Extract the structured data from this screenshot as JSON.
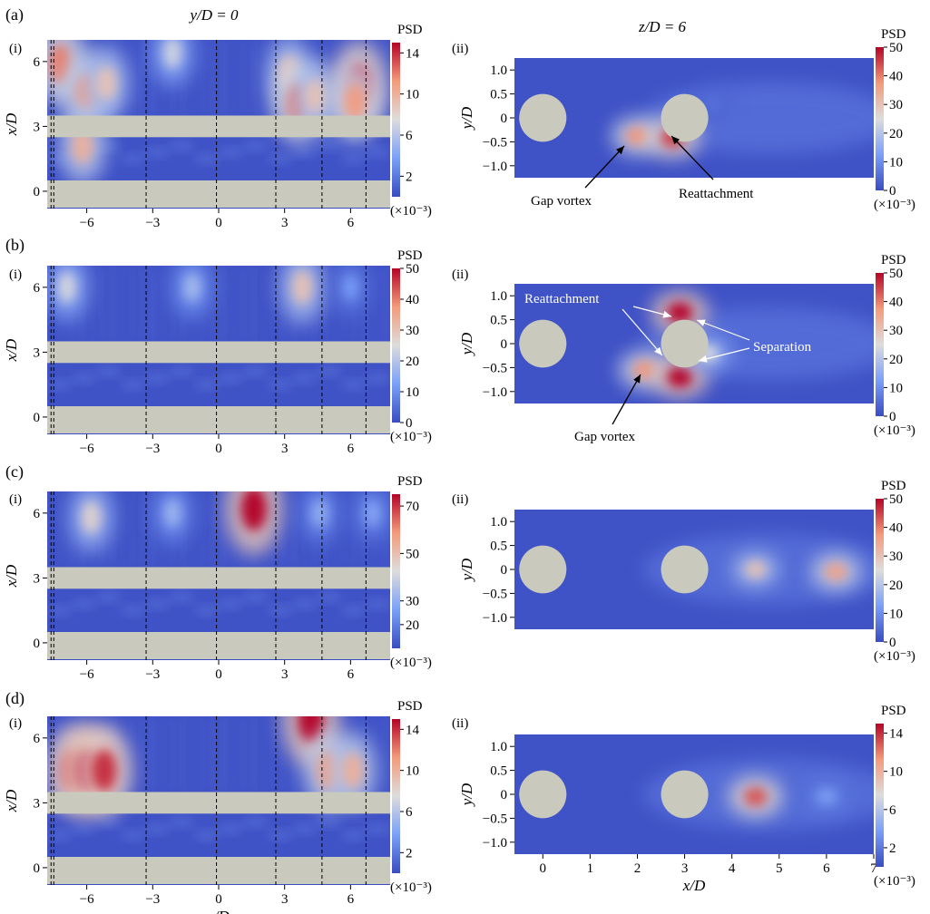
{
  "chart_data": [
    {
      "panel": "a",
      "sub": "i",
      "type": "heatmap",
      "title": "y/D = 0",
      "xlabel": "",
      "ylabel": "x/D",
      "xticks": [
        "-6",
        "-3",
        "0",
        "3",
        "6"
      ],
      "yticks": [
        "0",
        "3",
        "6"
      ],
      "xlim": [
        -7.8,
        7.8
      ],
      "ylim": [
        -0.8,
        7.0
      ],
      "colorbar": {
        "label": "PSD",
        "ticks": [
          "14",
          "10",
          "6",
          "2"
        ],
        "range": [
          0,
          15
        ],
        "unit": "(×10⁻³)"
      },
      "hotspots": [
        {
          "z": -7.2,
          "x": 5.9,
          "v": 12
        },
        {
          "z": -6.0,
          "x": 4.6,
          "v": 11
        },
        {
          "z": -5.1,
          "x": 5.0,
          "v": 9
        },
        {
          "z": -2.1,
          "x": 6.4,
          "v": 7
        },
        {
          "z": 3.2,
          "x": 5.5,
          "v": 9
        },
        {
          "z": 3.6,
          "x": 4.1,
          "v": 12
        },
        {
          "z": 4.4,
          "x": 4.4,
          "v": 9
        },
        {
          "z": 6.4,
          "x": 4.9,
          "v": 14
        },
        {
          "z": 6.2,
          "x": 4.1,
          "v": 11
        },
        {
          "z": -6.2,
          "x": 2.1,
          "v": 10
        }
      ]
    },
    {
      "panel": "a",
      "sub": "ii",
      "type": "heatmap",
      "title": "z/D = 6",
      "xlabel": "",
      "ylabel": "y/D",
      "xticks": [],
      "yticks": [
        "1.0",
        "0.5",
        "0",
        "-0.5",
        "-1.0"
      ],
      "xlim": [
        -0.6,
        7.0
      ],
      "ylim": [
        -1.25,
        1.25
      ],
      "colorbar": {
        "label": "PSD",
        "ticks": [
          "50",
          "40",
          "30",
          "20",
          "10",
          "0"
        ],
        "range": [
          0,
          50
        ],
        "unit": "(×10⁻³)"
      },
      "hotspots": [
        {
          "x": 2.0,
          "y": -0.38,
          "v": 38
        },
        {
          "x": 2.75,
          "y": -0.42,
          "v": 45
        },
        {
          "x": 3.6,
          "y": 0.3,
          "v": 6
        }
      ],
      "annotations": [
        "Gap vortex",
        "Reattachment"
      ]
    },
    {
      "panel": "b",
      "sub": "i",
      "type": "heatmap",
      "xlabel": "",
      "ylabel": "x/D",
      "xticks": [
        "-6",
        "-3",
        "0",
        "3",
        "6"
      ],
      "yticks": [
        "0",
        "3",
        "6"
      ],
      "xlim": [
        -7.8,
        7.8
      ],
      "ylim": [
        -0.8,
        7.0
      ],
      "colorbar": {
        "label": "PSD",
        "ticks": [
          "50",
          "40",
          "30",
          "20",
          "10",
          "0"
        ],
        "range": [
          0,
          50
        ],
        "unit": "(×10⁻³)"
      },
      "hotspots": [
        {
          "z": -6.9,
          "x": 6.0,
          "v": 24
        },
        {
          "z": -1.2,
          "x": 6.0,
          "v": 18
        },
        {
          "z": 3.8,
          "x": 6.0,
          "v": 30
        },
        {
          "z": 6.0,
          "x": 6.0,
          "v": 12
        }
      ]
    },
    {
      "panel": "b",
      "sub": "ii",
      "type": "heatmap",
      "xlabel": "",
      "ylabel": "y/D",
      "xticks": [],
      "yticks": [
        "1.0",
        "0.5",
        "0",
        "-0.5",
        "-1.0"
      ],
      "xlim": [
        -0.6,
        7.0
      ],
      "ylim": [
        -1.25,
        1.25
      ],
      "colorbar": {
        "label": "PSD",
        "ticks": [
          "50",
          "40",
          "30",
          "20",
          "10",
          "0"
        ],
        "range": [
          0,
          50
        ],
        "unit": "(×10⁻³)"
      },
      "hotspots": [
        {
          "x": 2.15,
          "y": -0.55,
          "v": 38
        },
        {
          "x": 2.9,
          "y": 0.65,
          "v": 50
        },
        {
          "x": 2.9,
          "y": -0.7,
          "v": 50
        },
        {
          "x": 3.5,
          "y": -0.2,
          "v": 25
        }
      ],
      "annotations": [
        "Reattachment",
        "Separation",
        "Gap vortex"
      ]
    },
    {
      "panel": "c",
      "sub": "i",
      "type": "heatmap",
      "xlabel": "",
      "ylabel": "x/D",
      "xticks": [
        "-6",
        "-3",
        "0",
        "3",
        "6"
      ],
      "yticks": [
        "0",
        "3",
        "6"
      ],
      "xlim": [
        -7.8,
        7.8
      ],
      "ylim": [
        -0.8,
        7.0
      ],
      "colorbar": {
        "label": "PSD",
        "ticks": [
          "70",
          "50",
          "30",
          "20"
        ],
        "range": [
          10,
          75
        ],
        "unit": "(×10⁻³)"
      },
      "hotspots": [
        {
          "z": -5.8,
          "x": 5.8,
          "v": 45
        },
        {
          "z": -2.1,
          "x": 6.0,
          "v": 32
        },
        {
          "z": 1.6,
          "x": 6.2,
          "v": 75
        },
        {
          "z": 4.6,
          "x": 6.0,
          "v": 30
        },
        {
          "z": 7.0,
          "x": 6.0,
          "v": 28
        }
      ]
    },
    {
      "panel": "c",
      "sub": "ii",
      "type": "heatmap",
      "xlabel": "",
      "ylabel": "y/D",
      "xticks": [],
      "yticks": [
        "1.0",
        "0.5",
        "0",
        "-0.5",
        "-1.0"
      ],
      "xlim": [
        -0.6,
        7.0
      ],
      "ylim": [
        -1.25,
        1.25
      ],
      "colorbar": {
        "label": "PSD",
        "ticks": [
          "50",
          "40",
          "30",
          "20",
          "10",
          "0"
        ],
        "range": [
          0,
          50
        ],
        "unit": "(×10⁻³)"
      },
      "hotspots": [
        {
          "x": 4.5,
          "y": 0.0,
          "v": 30
        },
        {
          "x": 6.2,
          "y": -0.05,
          "v": 36
        }
      ]
    },
    {
      "panel": "d",
      "sub": "i",
      "type": "heatmap",
      "xlabel": "z/D",
      "ylabel": "x/D",
      "xticks": [
        "-6",
        "-3",
        "0",
        "3",
        "6"
      ],
      "yticks": [
        "0",
        "3",
        "6"
      ],
      "xlim": [
        -7.8,
        7.8
      ],
      "ylim": [
        -0.8,
        7.0
      ],
      "colorbar": {
        "label": "PSD",
        "ticks": [
          "14",
          "10",
          "6",
          "2"
        ],
        "range": [
          0,
          15
        ],
        "unit": "(×10⁻³)"
      },
      "hotspots": [
        {
          "z": -6.6,
          "x": 4.5,
          "v": 14
        },
        {
          "z": -5.9,
          "x": 4.5,
          "v": 15
        },
        {
          "z": -5.2,
          "x": 4.5,
          "v": 14
        },
        {
          "z": 4.2,
          "x": 6.8,
          "v": 15
        },
        {
          "z": 5.0,
          "x": 4.5,
          "v": 11
        },
        {
          "z": 6.1,
          "x": 4.5,
          "v": 10
        }
      ]
    },
    {
      "panel": "d",
      "sub": "ii",
      "type": "heatmap",
      "xlabel": "x/D",
      "ylabel": "y/D",
      "xticks": [
        "0",
        "1",
        "2",
        "3",
        "4",
        "5",
        "6",
        "7"
      ],
      "yticks": [
        "1.0",
        "0.5",
        "0",
        "-0.5",
        "-1.0"
      ],
      "xlim": [
        -0.6,
        7.0
      ],
      "ylim": [
        -1.25,
        1.25
      ],
      "colorbar": {
        "label": "PSD",
        "ticks": [
          "14",
          "10",
          "6",
          "2"
        ],
        "range": [
          0,
          15
        ],
        "unit": "(×10⁻³)"
      },
      "hotspots": [
        {
          "x": 4.5,
          "y": -0.05,
          "v": 13
        },
        {
          "x": 6.0,
          "y": -0.05,
          "v": 4
        }
      ]
    }
  ],
  "labels": {
    "a": "(a)",
    "b": "(b)",
    "c": "(c)",
    "d": "(d)",
    "sub_i": "(i)",
    "sub_ii": "(ii)"
  }
}
